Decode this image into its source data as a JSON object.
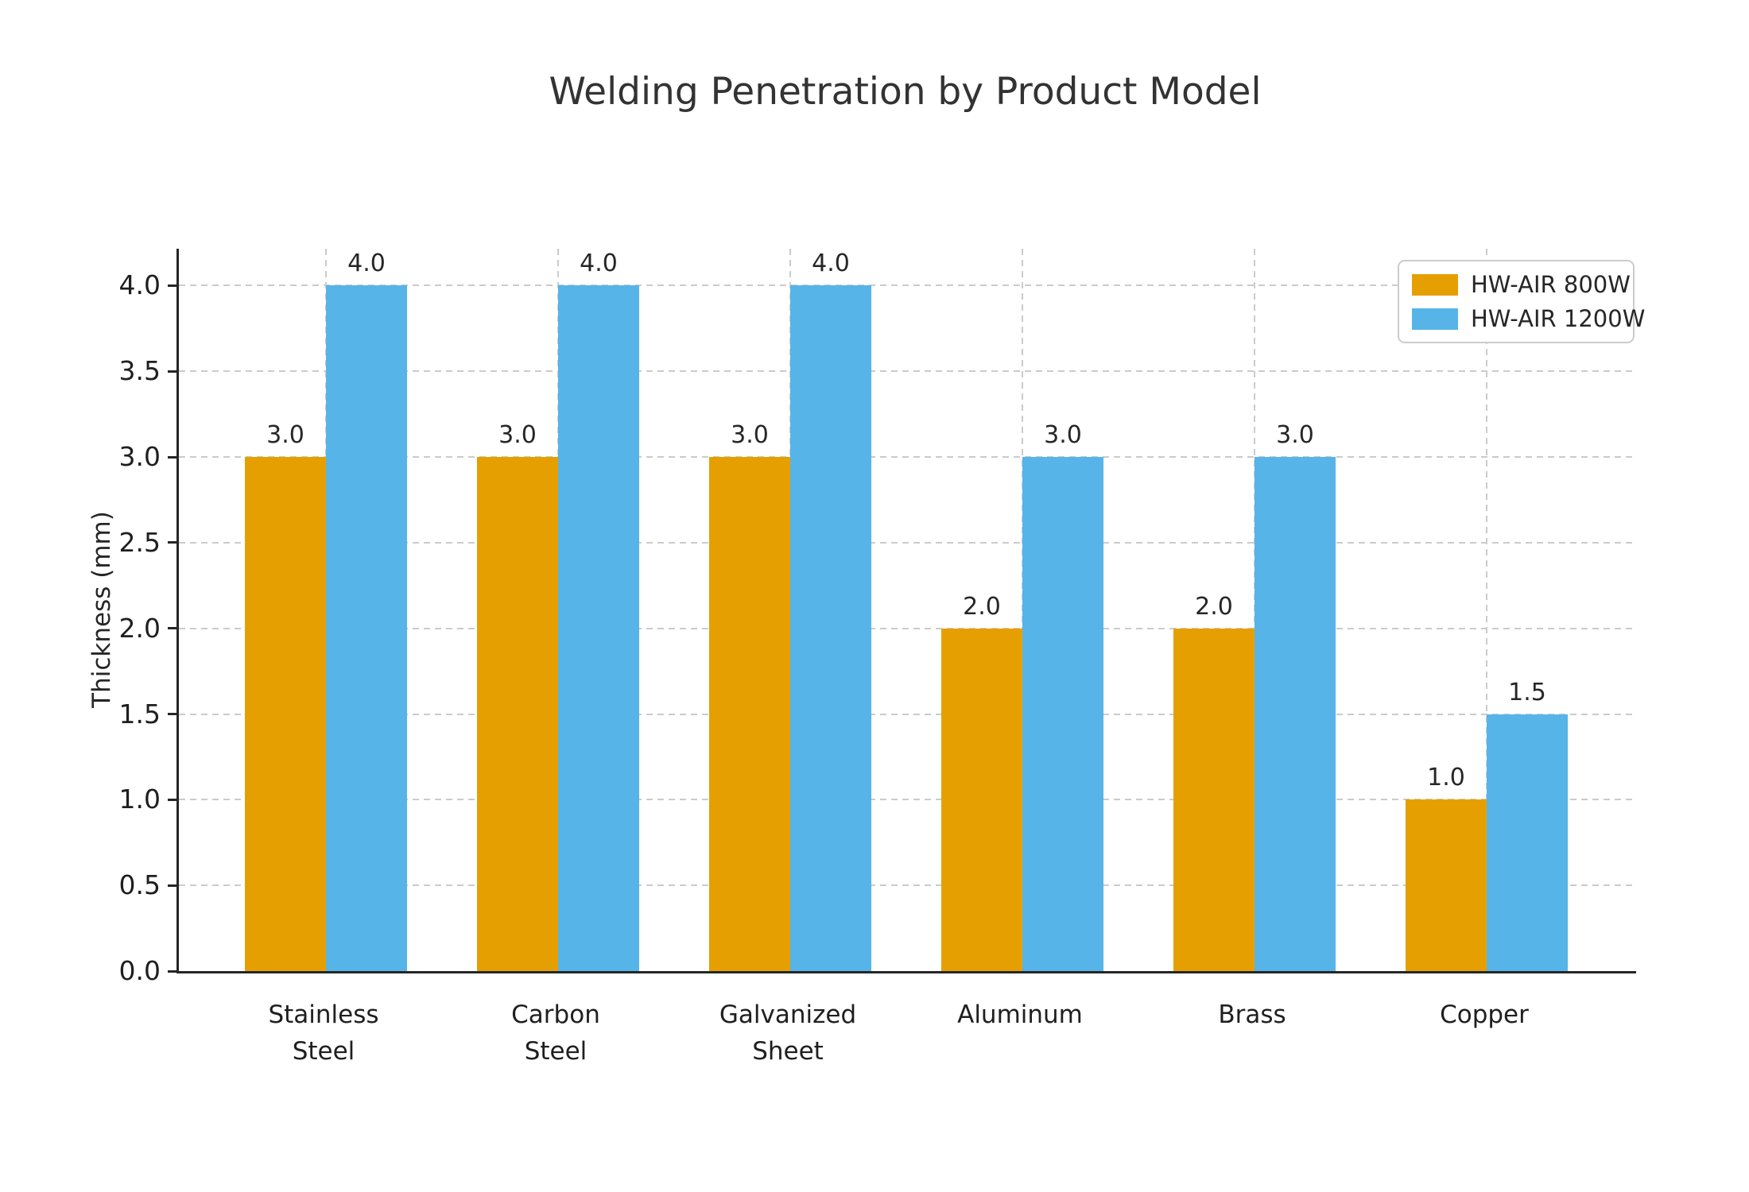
{
  "chart_data": {
    "type": "bar",
    "title": "Welding Penetration by Product Model",
    "ylabel": "Thickness (mm)",
    "xlabel": "",
    "categories": [
      "Stainless\nSteel",
      "Carbon\nSteel",
      "Galvanized\nSheet",
      "Aluminum",
      "Brass",
      "Copper"
    ],
    "series": [
      {
        "name": "HW-AIR 800W",
        "color": "#E69F00",
        "values": [
          3.0,
          3.0,
          3.0,
          2.0,
          2.0,
          1.0
        ]
      },
      {
        "name": "HW-AIR 1200W",
        "color": "#56B4E9",
        "values": [
          4.0,
          4.0,
          4.0,
          3.0,
          3.0,
          1.5
        ]
      }
    ],
    "yticks": [
      0.0,
      0.5,
      1.0,
      1.5,
      2.0,
      2.5,
      3.0,
      3.5,
      4.0
    ],
    "ylim": [
      0,
      4.215
    ],
    "bar_value_label_format": "one-decimal",
    "grid": true,
    "grid_style": "dashed",
    "legend_position": "upper right",
    "style_colors": {
      "background": "#ffffff",
      "grid": "#cbcbcb",
      "axis": "#262626",
      "text": "#262626",
      "title": "#333333",
      "legend_border": "#cccccc"
    }
  }
}
